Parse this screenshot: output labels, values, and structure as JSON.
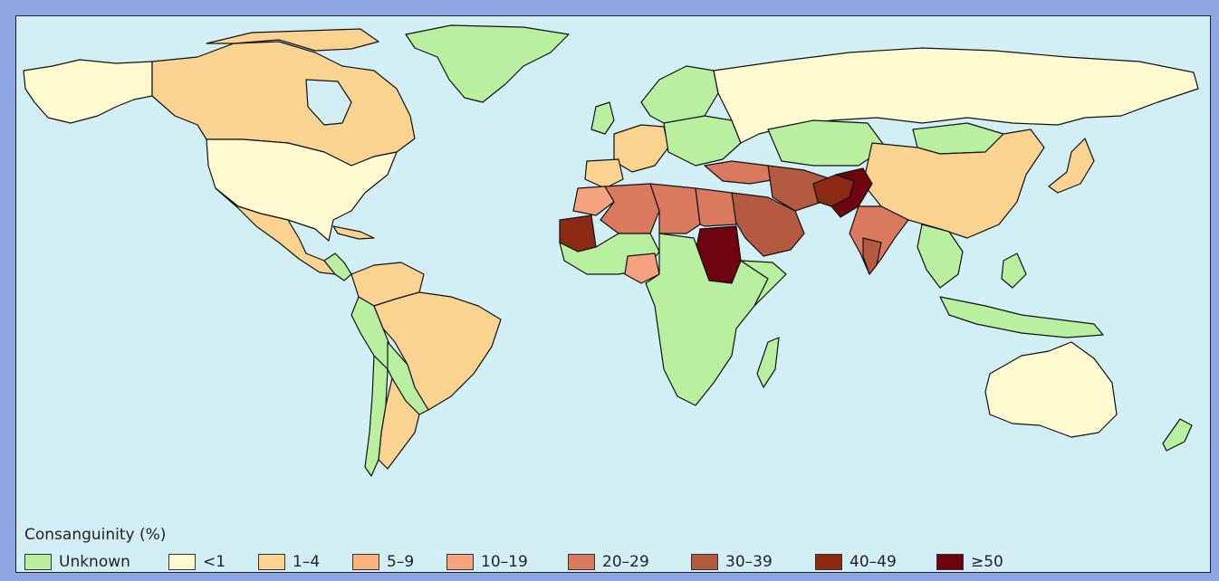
{
  "legend": {
    "title": "Consanguinity (%)",
    "items": [
      {
        "label": "Unknown",
        "color": "#b8f0a0"
      },
      {
        "label": "<1",
        "color": "#fff9cf"
      },
      {
        "label": "1–4",
        "color": "#fbd390"
      },
      {
        "label": "5–9",
        "color": "#fab27f"
      },
      {
        "label": "10–19",
        "color": "#f5a27e"
      },
      {
        "label": "20–29",
        "color": "#d9795e"
      },
      {
        "label": "30–39",
        "color": "#b35a40"
      },
      {
        "label": "40–49",
        "color": "#8c2a14"
      },
      {
        "label": "≥50",
        "color": "#6e0410"
      }
    ]
  },
  "colors": {
    "ocean": "#d3eff6",
    "frame": "#8fa6e6",
    "border": "#111111"
  }
}
